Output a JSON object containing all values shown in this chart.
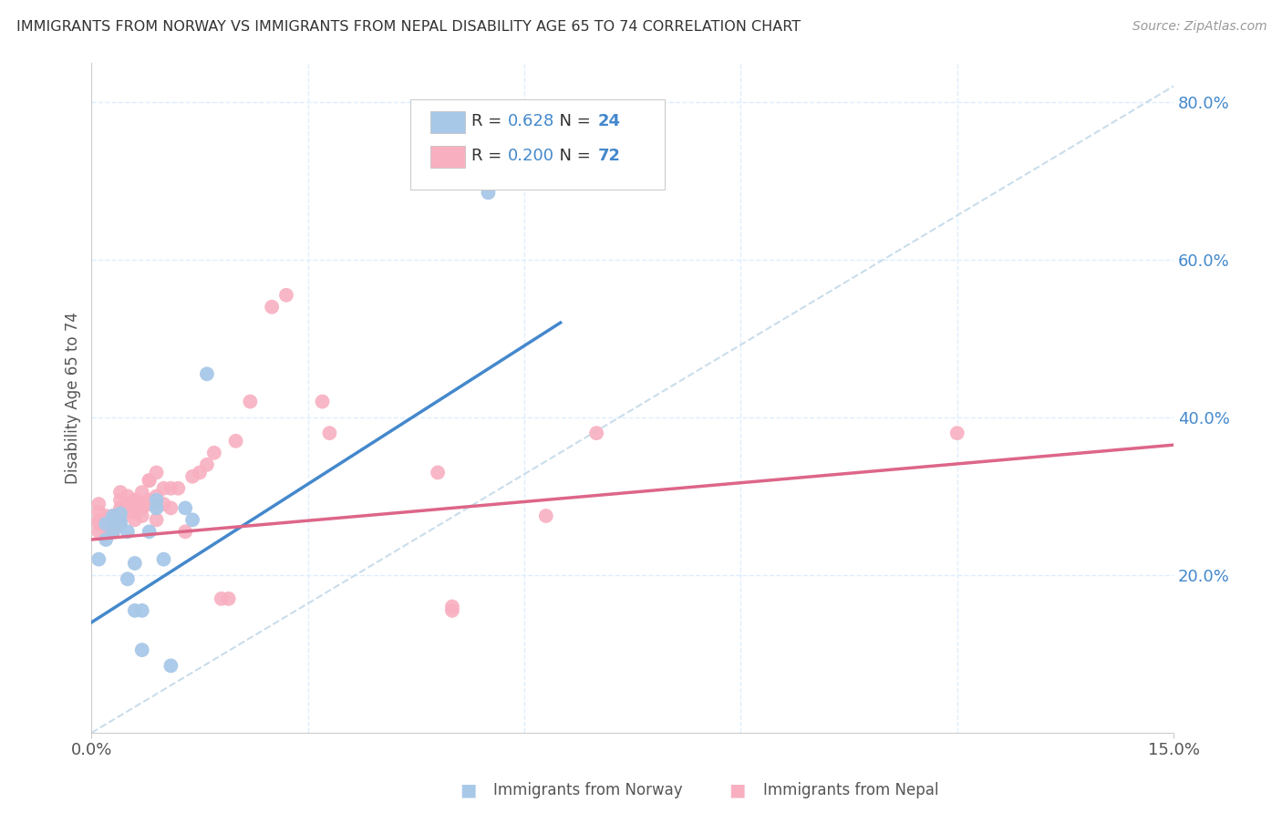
{
  "title": "IMMIGRANTS FROM NORWAY VS IMMIGRANTS FROM NEPAL DISABILITY AGE 65 TO 74 CORRELATION CHART",
  "source": "Source: ZipAtlas.com",
  "ylabel": "Disability Age 65 to 74",
  "xaxis_label_norway": "Immigrants from Norway",
  "xaxis_label_nepal": "Immigrants from Nepal",
  "xlim": [
    0.0,
    0.15
  ],
  "ylim": [
    0.0,
    0.85
  ],
  "y_ticks_right": [
    0.2,
    0.4,
    0.6,
    0.8
  ],
  "y_tick_labels_right": [
    "20.0%",
    "40.0%",
    "60.0%",
    "80.0%"
  ],
  "norway_R": 0.628,
  "norway_N": 24,
  "nepal_R": 0.2,
  "nepal_N": 72,
  "norway_color": "#a8c8e8",
  "nepal_color": "#f8b0c0",
  "norway_line_color": "#4488cc",
  "nepal_line_color": "#dd6688",
  "diagonal_line_color": "#c0d8e8",
  "background_color": "#ffffff",
  "grid_color": "#ddeeff",
  "norway_line_x0": 0.0,
  "norway_line_y0": 0.14,
  "norway_line_x1": 0.065,
  "norway_line_y1": 0.52,
  "nepal_line_x0": 0.0,
  "nepal_line_y0": 0.245,
  "nepal_line_x1": 0.15,
  "nepal_line_y1": 0.365,
  "norway_points_x": [
    0.001,
    0.002,
    0.002,
    0.003,
    0.003,
    0.003,
    0.004,
    0.004,
    0.004,
    0.005,
    0.005,
    0.006,
    0.006,
    0.007,
    0.007,
    0.008,
    0.009,
    0.009,
    0.01,
    0.011,
    0.013,
    0.014,
    0.016,
    0.055
  ],
  "norway_points_y": [
    0.22,
    0.265,
    0.245,
    0.275,
    0.255,
    0.27,
    0.265,
    0.278,
    0.268,
    0.255,
    0.195,
    0.155,
    0.215,
    0.155,
    0.105,
    0.255,
    0.295,
    0.285,
    0.22,
    0.085,
    0.285,
    0.27,
    0.455,
    0.685
  ],
  "nepal_points_x": [
    0.001,
    0.001,
    0.001,
    0.001,
    0.001,
    0.002,
    0.002,
    0.002,
    0.002,
    0.002,
    0.002,
    0.003,
    0.003,
    0.003,
    0.003,
    0.003,
    0.003,
    0.003,
    0.003,
    0.004,
    0.004,
    0.004,
    0.004,
    0.004,
    0.004,
    0.004,
    0.005,
    0.005,
    0.005,
    0.005,
    0.006,
    0.006,
    0.006,
    0.006,
    0.006,
    0.007,
    0.007,
    0.007,
    0.007,
    0.007,
    0.008,
    0.008,
    0.008,
    0.008,
    0.009,
    0.009,
    0.009,
    0.009,
    0.01,
    0.01,
    0.011,
    0.011,
    0.012,
    0.013,
    0.014,
    0.015,
    0.016,
    0.017,
    0.018,
    0.019,
    0.02,
    0.022,
    0.025,
    0.027,
    0.032,
    0.033,
    0.048,
    0.05,
    0.05,
    0.063,
    0.07,
    0.12
  ],
  "nepal_points_y": [
    0.27,
    0.28,
    0.29,
    0.265,
    0.255,
    0.27,
    0.26,
    0.275,
    0.27,
    0.265,
    0.26,
    0.275,
    0.27,
    0.265,
    0.275,
    0.265,
    0.26,
    0.265,
    0.255,
    0.305,
    0.295,
    0.285,
    0.28,
    0.275,
    0.28,
    0.27,
    0.3,
    0.29,
    0.285,
    0.28,
    0.295,
    0.295,
    0.285,
    0.28,
    0.27,
    0.305,
    0.29,
    0.285,
    0.285,
    0.275,
    0.32,
    0.295,
    0.29,
    0.32,
    0.33,
    0.3,
    0.29,
    0.27,
    0.31,
    0.29,
    0.31,
    0.285,
    0.31,
    0.255,
    0.325,
    0.33,
    0.34,
    0.355,
    0.17,
    0.17,
    0.37,
    0.42,
    0.54,
    0.555,
    0.42,
    0.38,
    0.33,
    0.155,
    0.16,
    0.275,
    0.38,
    0.38
  ]
}
